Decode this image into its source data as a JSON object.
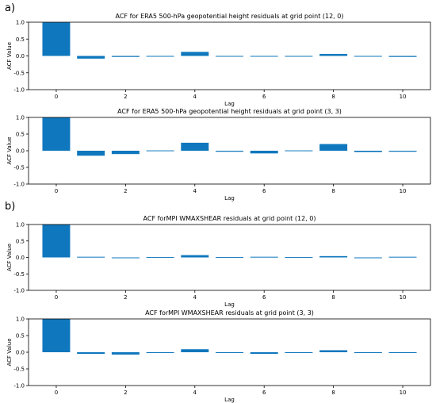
{
  "panel_labels": [
    "a)",
    "b)"
  ],
  "chart_data": [
    {
      "type": "bar",
      "title": "ACF for ERA5 500-hPa geopotential height residuals at grid point (12, 0)",
      "xlabel": "Lag",
      "ylabel": "ACF Value",
      "ylim": [
        -1.0,
        1.0
      ],
      "yticks": [
        -1.0,
        -0.5,
        0.0,
        0.5,
        1.0
      ],
      "ytick_labels": [
        "-1.0",
        "-0.5",
        "0.0",
        "0.5",
        "1.0"
      ],
      "xticks": [
        0,
        2,
        4,
        6,
        8,
        10
      ],
      "x": [
        0,
        1,
        2,
        3,
        4,
        5,
        6,
        7,
        8,
        9,
        10
      ],
      "values": [
        1.0,
        -0.08,
        -0.03,
        0.0,
        0.12,
        0.0,
        -0.02,
        0.0,
        0.06,
        0.0,
        -0.03
      ],
      "bar_color": "#0f77bd",
      "grid": false
    },
    {
      "type": "bar",
      "title": "ACF for ERA5 500-hPa geopotential height residuals at grid point (3, 3)",
      "xlabel": "Lag",
      "ylabel": "ACF Value",
      "ylim": [
        -1.0,
        1.0
      ],
      "yticks": [
        -1.0,
        -0.5,
        0.0,
        0.5,
        1.0
      ],
      "ytick_labels": [
        "-1.0",
        "-0.5",
        "0.0",
        "0.5",
        "1.0"
      ],
      "xticks": [
        0,
        2,
        4,
        6,
        8,
        10
      ],
      "x": [
        0,
        1,
        2,
        3,
        4,
        5,
        6,
        7,
        8,
        9,
        10
      ],
      "values": [
        1.0,
        -0.15,
        -0.1,
        0.01,
        0.24,
        -0.03,
        -0.08,
        0.01,
        0.2,
        -0.04,
        -0.03
      ],
      "bar_color": "#0f77bd",
      "grid": false
    },
    {
      "type": "bar",
      "title": "ACF forMPI WMAXSHEAR residuals at grid point (12, 0)",
      "xlabel": "Lag",
      "ylabel": "ACF Value",
      "ylim": [
        -1.0,
        1.0
      ],
      "yticks": [
        -1.0,
        -0.5,
        0.0,
        0.5,
        1.0
      ],
      "ytick_labels": [
        "-1.0",
        "-0.5",
        "0.0",
        "0.5",
        "1.0"
      ],
      "xticks": [
        0,
        2,
        4,
        6,
        8,
        10
      ],
      "x": [
        0,
        1,
        2,
        3,
        4,
        5,
        6,
        7,
        8,
        9,
        10
      ],
      "values": [
        1.0,
        0.02,
        -0.02,
        0.01,
        0.07,
        0.01,
        0.02,
        0.01,
        0.04,
        -0.02,
        0.02
      ],
      "bar_color": "#0f77bd",
      "grid": false
    },
    {
      "type": "bar",
      "title": "ACF forMPI WMAXSHEAR residuals at grid point (3, 3)",
      "xlabel": "Lag",
      "ylabel": "ACF Value",
      "ylim": [
        -1.0,
        1.0
      ],
      "yticks": [
        -1.0,
        -0.5,
        0.0,
        0.5,
        1.0
      ],
      "ytick_labels": [
        "-1.0",
        "-0.5",
        "0.0",
        "0.5",
        "1.0"
      ],
      "xticks": [
        0,
        2,
        4,
        6,
        8,
        10
      ],
      "x": [
        0,
        1,
        2,
        3,
        4,
        5,
        6,
        7,
        8,
        9,
        10
      ],
      "values": [
        1.0,
        -0.05,
        -0.07,
        0.0,
        0.09,
        0.0,
        -0.05,
        0.0,
        0.06,
        0.0,
        -0.01
      ],
      "bar_color": "#0f77bd",
      "grid": false
    }
  ]
}
